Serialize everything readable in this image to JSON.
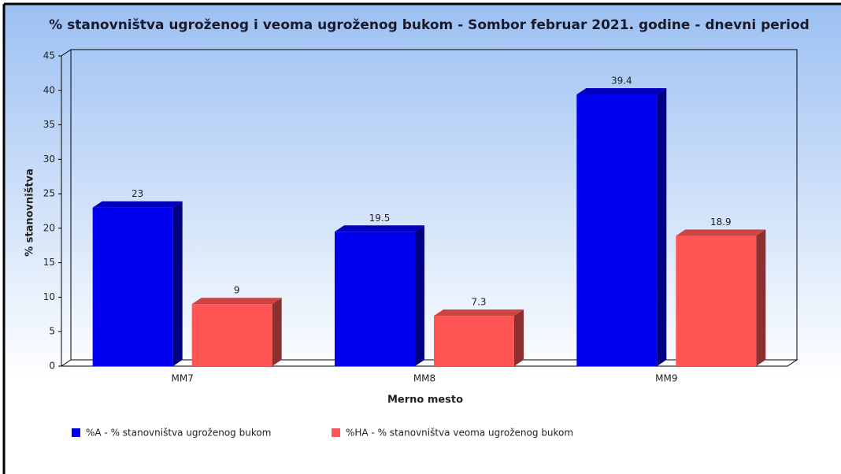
{
  "chart_data": {
    "type": "bar",
    "title": "% stanovništva ugroženog i veoma ugroženog bukom - Sombor februar 2021. godine - dnevni period",
    "x_label": "Merno mesto",
    "y_label": "% stanovništva",
    "categories": [
      "MM7",
      "MM8",
      "MM9"
    ],
    "series": [
      {
        "name": "%A - % stanovništva ugroženog bukom",
        "color": "#0000ee",
        "values": [
          23,
          19.5,
          39.4
        ]
      },
      {
        "name": "%HA - % stanovništva veoma ugroženog bukom",
        "color": "#ff5555",
        "values": [
          9,
          7.3,
          18.9
        ]
      }
    ],
    "ylim": [
      0,
      45
    ],
    "yticks": [
      0,
      5,
      10,
      15,
      20,
      25,
      30,
      35,
      40,
      45
    ]
  }
}
